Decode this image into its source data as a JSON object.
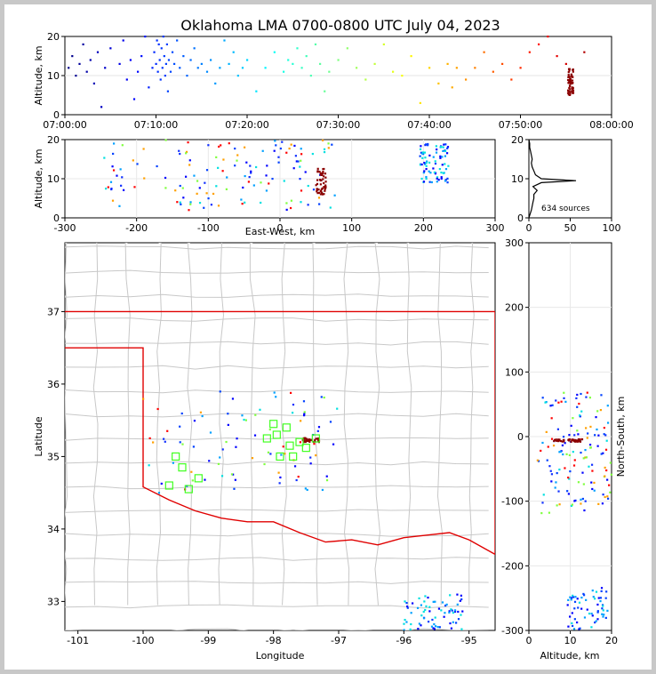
{
  "chart_data": [
    {
      "id": "time_alt",
      "type": "scatter",
      "title": "Oklahoma LMA 0700-0800 UTC July 04, 2023",
      "xlabel": "",
      "ylabel": "Altitude, km",
      "x_ticks": [
        "07:00:00",
        "07:10:00",
        "07:20:00",
        "07:30:00",
        "07:40:00",
        "07:50:00",
        "08:00:00"
      ],
      "xlim_minutes": [
        0,
        60
      ],
      "ylim": [
        0,
        20
      ],
      "y_ticks": [
        0,
        10,
        20
      ],
      "color_by": "time",
      "points": [
        [
          0.4,
          12
        ],
        [
          0.8,
          15
        ],
        [
          1.2,
          10
        ],
        [
          1.6,
          13
        ],
        [
          2.0,
          18
        ],
        [
          2.4,
          11
        ],
        [
          2.8,
          14
        ],
        [
          3.2,
          8
        ],
        [
          3.6,
          16
        ],
        [
          4.0,
          2
        ],
        [
          4.4,
          12
        ],
        [
          5.0,
          17
        ],
        [
          6.0,
          13
        ],
        [
          6.4,
          19
        ],
        [
          6.8,
          9
        ],
        [
          7.2,
          14
        ],
        [
          7.6,
          4
        ],
        [
          8.0,
          11
        ],
        [
          8.4,
          15
        ],
        [
          8.8,
          20
        ],
        [
          9.2,
          7
        ],
        [
          9.6,
          12
        ],
        [
          9.8,
          16
        ],
        [
          10.0,
          13
        ],
        [
          10.1,
          19
        ],
        [
          10.2,
          11
        ],
        [
          10.3,
          18
        ],
        [
          10.4,
          14
        ],
        [
          10.5,
          9
        ],
        [
          10.6,
          17
        ],
        [
          10.7,
          12
        ],
        [
          10.8,
          20
        ],
        [
          10.9,
          15
        ],
        [
          11.0,
          10
        ],
        [
          11.1,
          13
        ],
        [
          11.2,
          18
        ],
        [
          11.3,
          6
        ],
        [
          11.4,
          14
        ],
        [
          11.6,
          11
        ],
        [
          11.8,
          16
        ],
        [
          12.0,
          13
        ],
        [
          12.3,
          19
        ],
        [
          12.6,
          12
        ],
        [
          13.0,
          15
        ],
        [
          13.4,
          10
        ],
        [
          13.8,
          14
        ],
        [
          14.2,
          17
        ],
        [
          14.6,
          12
        ],
        [
          15.0,
          13
        ],
        [
          15.6,
          11
        ],
        [
          16.0,
          14
        ],
        [
          16.5,
          8
        ],
        [
          17.0,
          12
        ],
        [
          17.5,
          19
        ],
        [
          18.0,
          13
        ],
        [
          18.5,
          16
        ],
        [
          19.0,
          10
        ],
        [
          19.5,
          12
        ],
        [
          20.0,
          14
        ],
        [
          21.0,
          6
        ],
        [
          22.0,
          12
        ],
        [
          23.0,
          16
        ],
        [
          24.0,
          11
        ],
        [
          24.5,
          14
        ],
        [
          25.0,
          13
        ],
        [
          25.5,
          17
        ],
        [
          26.0,
          12
        ],
        [
          26.5,
          15
        ],
        [
          27.0,
          10
        ],
        [
          27.5,
          18
        ],
        [
          28.0,
          13
        ],
        [
          28.5,
          6
        ],
        [
          29.0,
          11
        ],
        [
          30.0,
          14
        ],
        [
          31.0,
          17
        ],
        [
          32.0,
          12
        ],
        [
          33.0,
          9
        ],
        [
          34.0,
          13
        ],
        [
          35.0,
          18
        ],
        [
          36.0,
          11
        ],
        [
          37.0,
          10
        ],
        [
          38.0,
          15
        ],
        [
          39.0,
          3
        ],
        [
          40.0,
          12
        ],
        [
          41.0,
          8
        ],
        [
          42.0,
          13
        ],
        [
          42.5,
          7
        ],
        [
          43.0,
          12
        ],
        [
          44.0,
          9
        ],
        [
          45.0,
          12
        ],
        [
          46.0,
          16
        ],
        [
          47.0,
          11
        ],
        [
          48.0,
          13
        ],
        [
          49.0,
          9
        ],
        [
          50.0,
          12
        ],
        [
          51.0,
          16
        ],
        [
          52.0,
          18
        ],
        [
          53.0,
          20
        ],
        [
          54.0,
          15
        ],
        [
          55.0,
          13
        ],
        [
          57.0,
          16
        ]
      ],
      "cluster": {
        "t": 55.5,
        "alt_min": 5,
        "alt_max": 12,
        "n": 60
      }
    },
    {
      "id": "ew_alt",
      "type": "scatter",
      "xlabel": "East-West, km",
      "ylabel": "Altitude, km",
      "xlim": [
        -300,
        300
      ],
      "x_ticks": [
        -300,
        -200,
        -100,
        0,
        100,
        200,
        300
      ],
      "ylim": [
        0,
        20
      ],
      "y_ticks": [
        0,
        10,
        20
      ]
    },
    {
      "id": "histogram",
      "type": "line",
      "xlim": [
        0,
        100
      ],
      "x_ticks": [
        0,
        50,
        100
      ],
      "ylim": [
        0,
        20
      ],
      "y_ticks": [
        0,
        10,
        20
      ],
      "annotation": "634 sources",
      "profile": [
        [
          0,
          0
        ],
        [
          3,
          2
        ],
        [
          5,
          4
        ],
        [
          6,
          5
        ],
        [
          6,
          6
        ],
        [
          10,
          7
        ],
        [
          5,
          8
        ],
        [
          15,
          9
        ],
        [
          57,
          9.5
        ],
        [
          15,
          10
        ],
        [
          8,
          11
        ],
        [
          6,
          12
        ],
        [
          4,
          13
        ],
        [
          3,
          14
        ],
        [
          4,
          15
        ],
        [
          3,
          16
        ],
        [
          2,
          17
        ],
        [
          1,
          18
        ],
        [
          1,
          19
        ],
        [
          0,
          20
        ]
      ]
    },
    {
      "id": "map",
      "type": "scatter",
      "xlabel": "Longitude",
      "ylabel": "Latitude",
      "xlim": [
        -101.2,
        -94.6
      ],
      "x_ticks": [
        -101,
        -100,
        -99,
        -98,
        -97,
        -96,
        -95
      ],
      "ylim": [
        32.6,
        37.95
      ],
      "y_ticks": [
        33,
        34,
        35,
        36,
        37
      ],
      "stations": [
        [
          -99.5,
          35.0
        ],
        [
          -99.4,
          34.85
        ],
        [
          -99.15,
          34.7
        ],
        [
          -99.6,
          34.6
        ],
        [
          -99.3,
          34.55
        ],
        [
          -98.0,
          35.45
        ],
        [
          -97.8,
          35.4
        ],
        [
          -98.1,
          35.25
        ],
        [
          -97.95,
          35.3
        ],
        [
          -97.75,
          35.15
        ],
        [
          -97.6,
          35.2
        ],
        [
          -97.5,
          35.12
        ],
        [
          -97.7,
          35.0
        ],
        [
          -97.9,
          35.0
        ],
        [
          -97.35,
          35.25
        ]
      ]
    },
    {
      "id": "alt_ns",
      "type": "scatter",
      "xlabel": "Altitude, km",
      "ylabel": "North-South, km",
      "xlim": [
        0,
        20
      ],
      "x_ticks": [
        0,
        10,
        20
      ],
      "ylim": [
        -300,
        300
      ],
      "y_ticks": [
        -300,
        -200,
        -100,
        0,
        100,
        200,
        300
      ]
    }
  ]
}
